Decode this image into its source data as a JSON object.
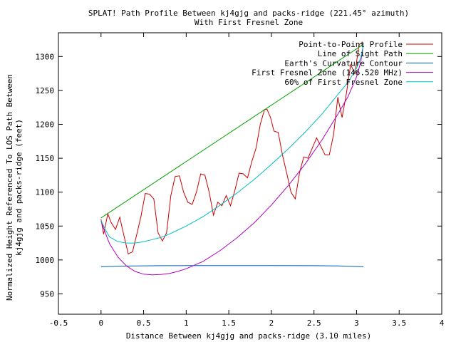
{
  "chart_data": {
    "type": "line",
    "title": "SPLAT! Path Profile Between kj4gjg and packs-ridge (221.45° azimuth)",
    "subtitle": "With First Fresnel Zone",
    "xlabel": "Distance Between kj4gjg and packs-ridge (3.10 miles)",
    "ylabel_line1": "Normalized Height Referenced To LOS Path Between",
    "ylabel_line2": "kj4gjg and packs-ridge (feet)",
    "xlim": [
      -0.5,
      4
    ],
    "ylim": [
      920,
      1335
    ],
    "x_ticks": [
      -0.5,
      0,
      0.5,
      1,
      1.5,
      2,
      2.5,
      3,
      3.5,
      4
    ],
    "x_tick_labels": [
      "-0.5",
      "0",
      "0.5",
      "1",
      "1.5",
      "2",
      "2.5",
      "3",
      "3.5",
      "4"
    ],
    "y_ticks": [
      950,
      1000,
      1050,
      1100,
      1150,
      1200,
      1250,
      1300
    ],
    "y_tick_labels": [
      "950",
      "1000",
      "1050",
      "1100",
      "1150",
      "1200",
      "1250",
      "1300"
    ],
    "grid": false,
    "legend_position": "top-right",
    "series": [
      {
        "name": "Point-to-Point Profile",
        "color": "#cc0000",
        "x": [
          0,
          0.03,
          0.08,
          0.12,
          0.17,
          0.22,
          0.27,
          0.32,
          0.37,
          0.42,
          0.47,
          0.52,
          0.57,
          0.62,
          0.67,
          0.72,
          0.77,
          0.82,
          0.87,
          0.92,
          0.97,
          1.02,
          1.07,
          1.12,
          1.17,
          1.22,
          1.27,
          1.32,
          1.37,
          1.42,
          1.47,
          1.52,
          1.57,
          1.62,
          1.67,
          1.72,
          1.77,
          1.82,
          1.87,
          1.92,
          1.95,
          1.99,
          2.03,
          2.08,
          2.13,
          2.18,
          2.23,
          2.28,
          2.33,
          2.38,
          2.43,
          2.48,
          2.53,
          2.58,
          2.63,
          2.68,
          2.73,
          2.78,
          2.83,
          2.88,
          2.93,
          2.98,
          3.03,
          3.08
        ],
        "y": [
          1060,
          1038,
          1068,
          1055,
          1045,
          1063,
          1035,
          1009,
          1012,
          1038,
          1065,
          1098,
          1097,
          1090,
          1040,
          1028,
          1040,
          1095,
          1123,
          1124,
          1100,
          1085,
          1082,
          1100,
          1127,
          1125,
          1100,
          1066,
          1085,
          1080,
          1095,
          1080,
          1102,
          1128,
          1127,
          1121,
          1145,
          1165,
          1200,
          1222,
          1222,
          1210,
          1190,
          1188,
          1155,
          1128,
          1100,
          1090,
          1128,
          1152,
          1150,
          1165,
          1180,
          1168,
          1155,
          1155,
          1185,
          1240,
          1210,
          1245,
          1288,
          1275,
          1318,
          1320
        ]
      },
      {
        "name": "Line of Sight Path",
        "color": "#00a000",
        "x": [
          0,
          3.08
        ],
        "y": [
          1062,
          1318
        ]
      },
      {
        "name": "Earth's Curvature Contour",
        "color": "#0060ad",
        "x": [
          0,
          0.3,
          0.7,
          1.0,
          1.5,
          2.0,
          2.5,
          2.8,
          3.08
        ],
        "y": [
          990,
          991,
          991.5,
          991.7,
          991.8,
          991.8,
          991.5,
          991.2,
          990
        ]
      },
      {
        "name": "First Fresnel Zone (146.520 MHz)",
        "color": "#b000c0",
        "x": [
          0,
          0.05,
          0.1,
          0.2,
          0.3,
          0.4,
          0.5,
          0.6,
          0.7,
          0.8,
          0.9,
          1.0,
          1.2,
          1.4,
          1.6,
          1.8,
          2.0,
          2.2,
          2.4,
          2.6,
          2.8,
          2.9,
          3.0,
          3.05,
          3.08
        ],
        "y": [
          1057,
          1040,
          1024,
          1004,
          991,
          983,
          979,
          978,
          978.5,
          980,
          983,
          987,
          998,
          1014,
          1033,
          1055,
          1081,
          1110,
          1142,
          1178,
          1219,
          1241,
          1270,
          1292,
          1318
        ]
      },
      {
        "name": "60% of First Fresnel Zone",
        "color": "#00c0c0",
        "x": [
          0,
          0.05,
          0.1,
          0.2,
          0.3,
          0.4,
          0.5,
          0.6,
          0.7,
          0.8,
          0.9,
          1.0,
          1.2,
          1.4,
          1.6,
          1.8,
          2.0,
          2.2,
          2.4,
          2.6,
          2.8,
          2.9,
          3.0,
          3.05,
          3.08
        ],
        "y": [
          1058,
          1045,
          1034,
          1027,
          1025,
          1025,
          1027,
          1030,
          1033,
          1038,
          1044,
          1050,
          1064,
          1081,
          1099,
          1119,
          1141,
          1164,
          1189,
          1216,
          1247,
          1262,
          1283,
          1298,
          1318
        ]
      }
    ]
  }
}
